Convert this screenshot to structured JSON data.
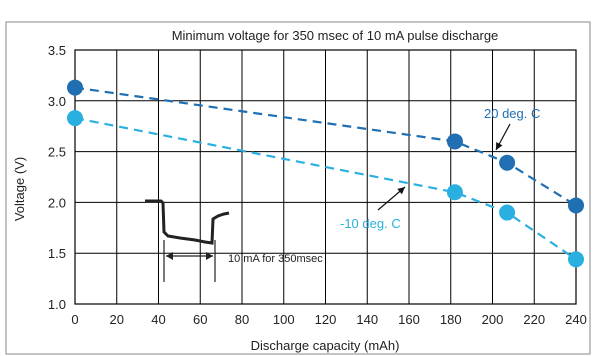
{
  "chart_data": {
    "type": "line",
    "title": "Minimum voltage for 350 msec of 10 mA pulse discharge",
    "xlabel": "Discharge capacity (mAh)",
    "ylabel": "Voltage (V)",
    "xlim": [
      0,
      240
    ],
    "ylim": [
      1.0,
      3.5
    ],
    "xticks": [
      "0",
      "20",
      "40",
      "60",
      "80",
      "100",
      "120",
      "140",
      "160",
      "180",
      "200",
      "220",
      "240"
    ],
    "yticks": [
      "1.0",
      "1.5",
      "2.0",
      "2.5",
      "3.0",
      "3.5"
    ],
    "grid": true,
    "series": [
      {
        "name": "20 deg. C",
        "color": "#1f6fb2",
        "line_style": "dashed",
        "x": [
          0,
          182,
          207,
          240
        ],
        "y": [
          3.13,
          2.6,
          2.39,
          1.97
        ]
      },
      {
        "name": "-10 deg. C",
        "color": "#2ab0e0",
        "line_style": "dashed",
        "x": [
          0,
          182,
          207,
          240
        ],
        "y": [
          2.83,
          2.1,
          1.9,
          1.44
        ]
      }
    ],
    "inset_annotation": "10 mA for 350msec"
  }
}
